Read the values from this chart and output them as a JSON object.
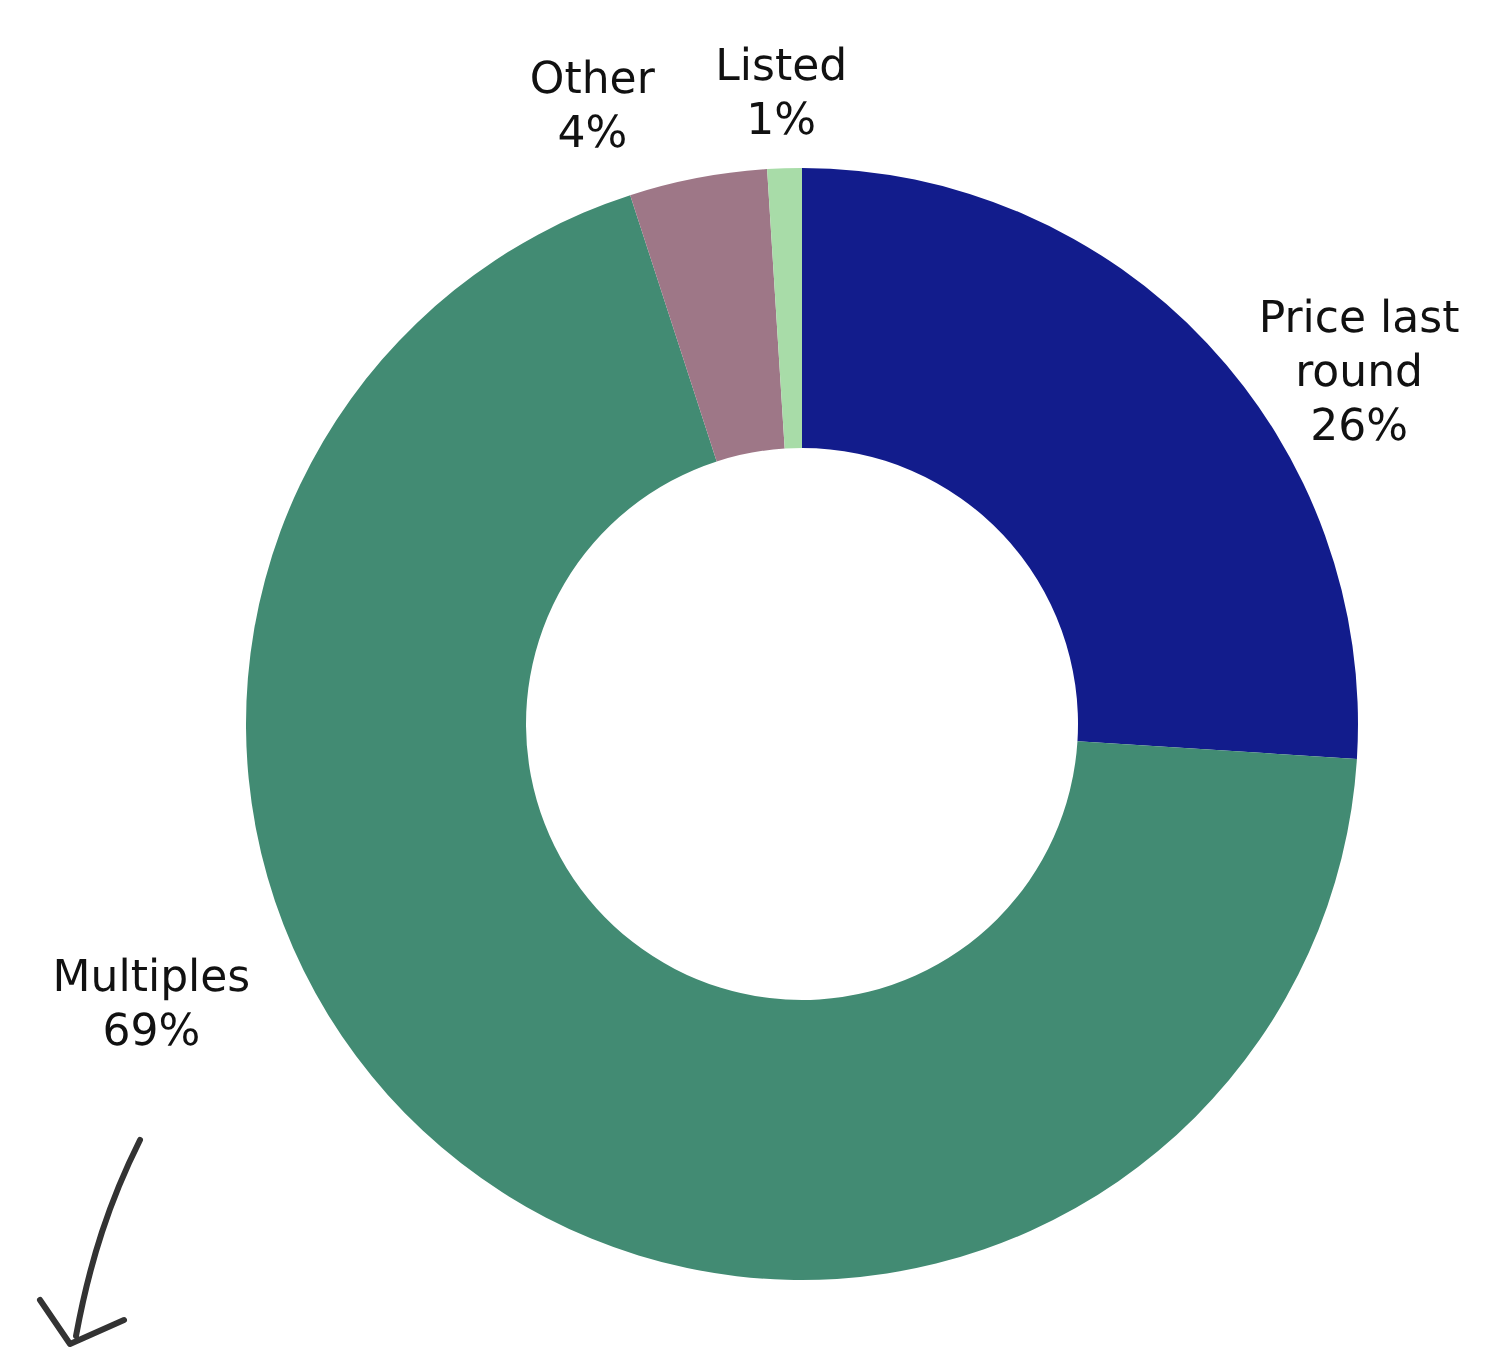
{
  "chart_data": {
    "type": "donut",
    "categories": [
      "Price last round",
      "Multiples",
      "Other",
      "Listed"
    ],
    "values": [
      26,
      69,
      4,
      1
    ],
    "colors": [
      "#121c8c",
      "#428b73",
      "#9e7787",
      "#a8dca8"
    ],
    "value_labels": [
      "26%",
      "69%",
      "4%",
      "1%"
    ]
  }
}
